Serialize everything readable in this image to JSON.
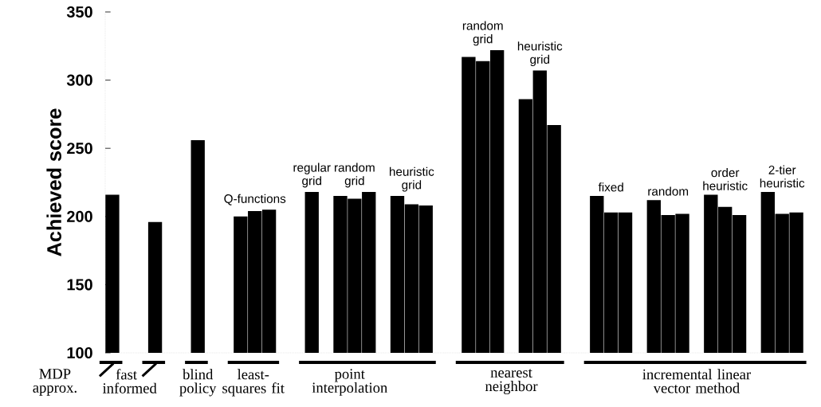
{
  "chart_data": {
    "type": "bar",
    "ylabel": "Achieved score",
    "categories": [
      null,
      null,
      null,
      null,
      null,
      null,
      null,
      null,
      null,
      null,
      null,
      null,
      null,
      null,
      null,
      null,
      null,
      null,
      null,
      null,
      null,
      null,
      null,
      null,
      null,
      null,
      null,
      null,
      null,
      null,
      null,
      null,
      null,
      null,
      null,
      null,
      null,
      null,
      null,
      null,
      null,
      null,
      null,
      null,
      null,
      null,
      null,
      null,
      null
    ],
    "values": [
      216,
      null,
      null,
      196,
      null,
      null,
      256,
      null,
      null,
      200,
      204,
      205,
      null,
      null,
      218,
      null,
      215,
      213,
      218,
      null,
      215,
      209,
      208,
      null,
      null,
      317,
      314,
      322,
      null,
      286,
      307,
      267,
      null,
      null,
      215,
      203,
      203,
      null,
      212,
      201,
      202,
      null,
      216,
      207,
      201,
      null,
      218,
      202,
      203
    ],
    "color": "#000000",
    "ylim": [
      100,
      350
    ],
    "yticks": [
      100,
      150,
      200,
      250,
      300,
      350
    ],
    "annotations": [
      "Q-functions",
      "regular grid",
      "random grid",
      "heuristic grid",
      "random grid",
      "heuristic grid",
      "fixed",
      "random",
      "order heuristic",
      "2-tier heuristic",
      "MDP approx.",
      "fast informed",
      "blind policy",
      "least-squares fit",
      "point interpolation",
      "nearest neighbor",
      "incremental linear vector method"
    ]
  }
}
